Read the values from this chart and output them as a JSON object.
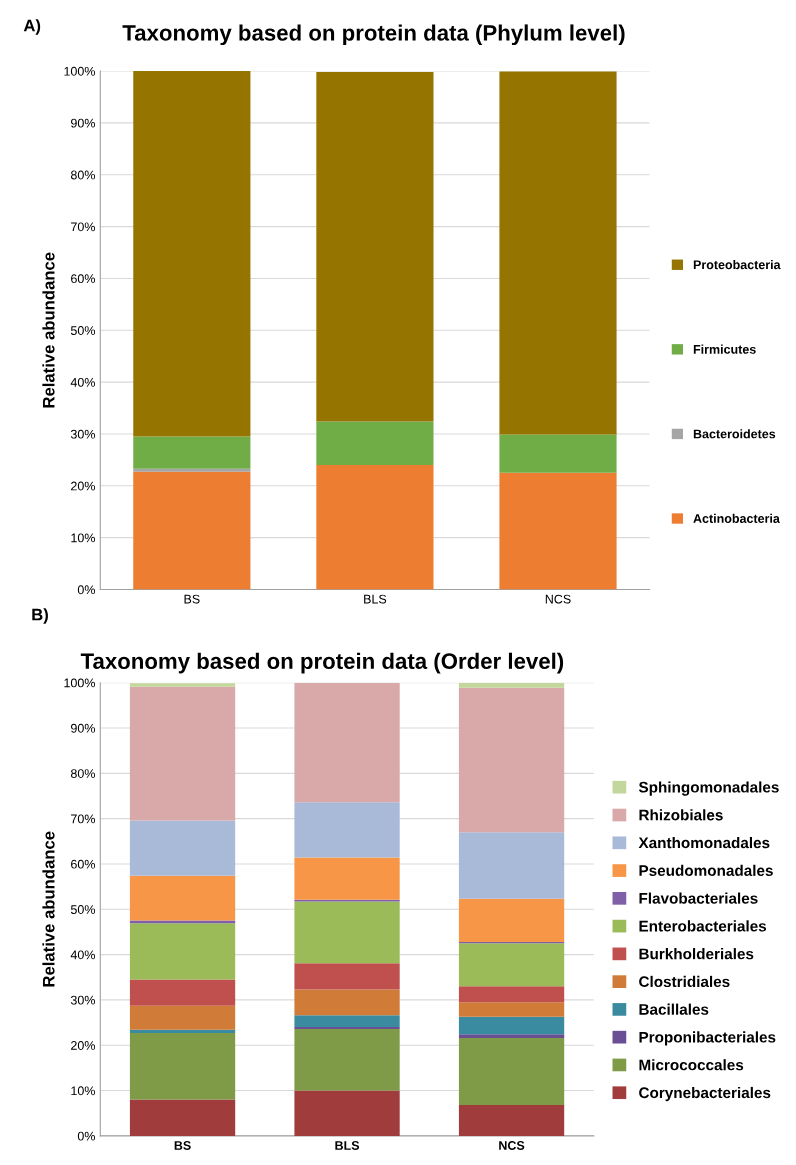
{
  "chart_data": [
    {
      "type": "bar",
      "title": "Taxonomy based on protein data (Phylum level)",
      "ylabel": "Relative abundance",
      "annotations": [
        "A)"
      ],
      "categories": [
        "BS",
        "BLS",
        "NCS"
      ],
      "stacked": true,
      "grid": "y",
      "legend": "right",
      "ylim": [
        0,
        100
      ],
      "yticks": [
        {
          "value": 0,
          "label": "0%"
        },
        {
          "value": 10,
          "label": "10%"
        },
        {
          "value": 20,
          "label": "20%"
        },
        {
          "value": 30,
          "label": "30%"
        },
        {
          "value": 40,
          "label": "40%"
        },
        {
          "value": 50,
          "label": "50%"
        },
        {
          "value": 60,
          "label": "60%"
        },
        {
          "value": 70,
          "label": "70%"
        },
        {
          "value": 80,
          "label": "80%"
        },
        {
          "value": 90,
          "label": "90%"
        },
        {
          "value": 100,
          "label": "100%"
        }
      ],
      "series": [
        {
          "name": "Actinobacteria",
          "color": "#ed7d31",
          "values": [
            22.7,
            24.0,
            22.5
          ]
        },
        {
          "name": "Bacteroidetes",
          "color": "#a5a5a5",
          "values": [
            0.6,
            null,
            null
          ]
        },
        {
          "name": "Firmicutes",
          "color": "#70ad47",
          "values": [
            6.2,
            8.4,
            7.4
          ]
        },
        {
          "name": "Proteobacteria",
          "color": "#967400",
          "values": [
            70.5,
            67.4,
            70.0
          ]
        }
      ]
    },
    {
      "type": "bar",
      "title": "Taxonomy based on protein data (Order level)",
      "ylabel": "Relative abundance",
      "annotations": [
        "B)"
      ],
      "categories": [
        "BS",
        "BLS",
        "NCS"
      ],
      "stacked": true,
      "grid": "y",
      "legend": "right",
      "ylim": [
        0,
        100
      ],
      "yticks": [
        {
          "value": 0,
          "label": "0%"
        },
        {
          "value": 10,
          "label": "10%"
        },
        {
          "value": 20,
          "label": "20%"
        },
        {
          "value": 30,
          "label": "30%"
        },
        {
          "value": 40,
          "label": "40%"
        },
        {
          "value": 50,
          "label": "50%"
        },
        {
          "value": 60,
          "label": "60%"
        },
        {
          "value": 70,
          "label": "70%"
        },
        {
          "value": 80,
          "label": "80%"
        },
        {
          "value": 90,
          "label": "90%"
        },
        {
          "value": 100,
          "label": "100%"
        }
      ],
      "series": [
        {
          "name": "Corynebacteriales",
          "color": "#a03c3c",
          "values": [
            8.0,
            10.0,
            6.8
          ]
        },
        {
          "name": "Micrococcales",
          "color": "#7f9b48",
          "values": [
            14.7,
            13.6,
            14.8
          ]
        },
        {
          "name": "Proponibacteriales",
          "color": "#6a4f94",
          "values": [
            null,
            0.4,
            0.8
          ]
        },
        {
          "name": "Bacillales",
          "color": "#3a8ba0",
          "values": [
            0.7,
            2.6,
            3.9
          ]
        },
        {
          "name": "Clostridiales",
          "color": "#d07b37",
          "values": [
            5.3,
            5.7,
            3.2
          ]
        },
        {
          "name": "Burkholderiales",
          "color": "#c0504d",
          "values": [
            5.8,
            5.8,
            3.5
          ]
        },
        {
          "name": "Enterobacteriales",
          "color": "#9bbb59",
          "values": [
            12.4,
            13.6,
            9.5
          ]
        },
        {
          "name": "Flavobacteriales",
          "color": "#7e5fa8",
          "values": [
            0.6,
            0.4,
            0.3
          ]
        },
        {
          "name": "Pseudomonadales",
          "color": "#f79646",
          "values": [
            9.9,
            9.3,
            9.5
          ]
        },
        {
          "name": "Xanthomonadales",
          "color": "#a9b9d8",
          "values": [
            12.2,
            12.2,
            14.7
          ]
        },
        {
          "name": "Rhizobiales",
          "color": "#d9a8a8",
          "values": [
            29.5,
            26.4,
            31.9
          ]
        },
        {
          "name": "Sphingomonadales",
          "color": "#c3d69b",
          "values": [
            0.8,
            0.0,
            1.1
          ]
        }
      ]
    }
  ]
}
